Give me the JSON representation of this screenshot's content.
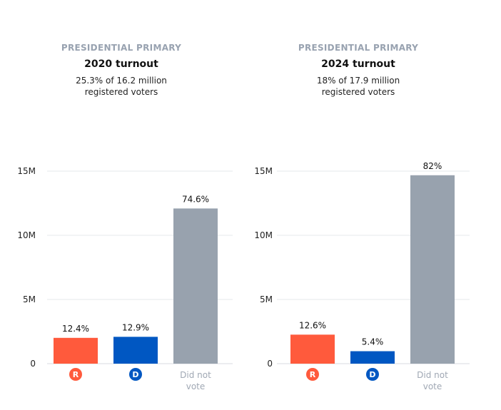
{
  "colors": {
    "R": "#ff5a3c",
    "D": "#0057c2",
    "none": "#98a2ae",
    "grid": "#e6e8eb",
    "label_muted": "#a0a8b4"
  },
  "chart_data": [
    {
      "type": "bar",
      "kicker": "PRESIDENTIAL PRIMARY",
      "title": "2020 turnout",
      "subtitle_line1": "25.3% of 16.2 million",
      "subtitle_line2": "registered voters",
      "categories": [
        "R",
        "D",
        "Did not vote"
      ],
      "category_lines": [
        [
          "R"
        ],
        [
          "D"
        ],
        [
          "Did not",
          "vote"
        ]
      ],
      "values": [
        2.01,
        2.09,
        12.09
      ],
      "value_unit": "M",
      "labels": [
        "12.4%",
        "12.9%",
        "74.6%"
      ],
      "yticks": [
        0,
        5,
        10,
        15
      ],
      "ytick_labels": [
        "0",
        "5M",
        "10M",
        "15M"
      ],
      "ylim": [
        0,
        15
      ],
      "grid": true
    },
    {
      "type": "bar",
      "kicker": "PRESIDENTIAL PRIMARY",
      "title": "2024 turnout",
      "subtitle_line1": "18% of 17.9 million",
      "subtitle_line2": "registered voters",
      "categories": [
        "R",
        "D",
        "Did not vote"
      ],
      "category_lines": [
        [
          "R"
        ],
        [
          "D"
        ],
        [
          "Did not",
          "vote"
        ]
      ],
      "values": [
        2.26,
        0.97,
        14.68
      ],
      "value_unit": "M",
      "labels": [
        "12.6%",
        "5.4%",
        "82%"
      ],
      "yticks": [
        0,
        5,
        10,
        15
      ],
      "ytick_labels": [
        "0",
        "5M",
        "10M",
        "15M"
      ],
      "ylim": [
        0,
        15
      ],
      "grid": true
    }
  ]
}
